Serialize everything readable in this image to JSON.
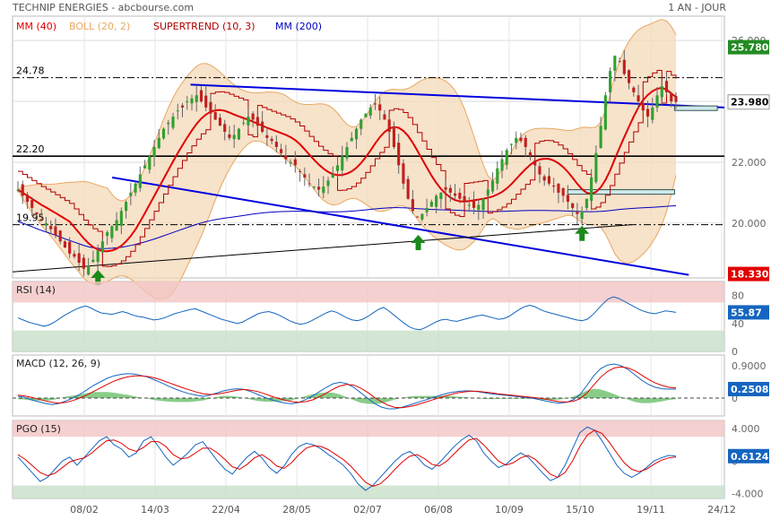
{
  "header": {
    "source": "TECHNIP ENERGIES - abcbourse.com",
    "period": "1 AN - JOUR"
  },
  "colors": {
    "mm40": "#e00000",
    "boll": "#e8a860",
    "boll_fill": "#f4d8b8",
    "supertrend": "#b00000",
    "mm200": "#0000c0",
    "trendline": "#0000dd",
    "candle_up": "#30a030",
    "candle_down": "#c02020",
    "price_badge_green": "#228b22",
    "price_badge_red": "#e00000",
    "indicator_badge": "#1565c0",
    "zone_red": "#f2c4c4",
    "zone_green": "#c8e0c8"
  },
  "chart_data": [
    {
      "type": "candlestick",
      "legend": [
        {
          "label": "MM (40)",
          "color": "#e00000"
        },
        {
          "label": "BOLL (20, 2)",
          "color": "#e8a860"
        },
        {
          "label": "SUPERTREND (10, 3)",
          "color": "#b00000"
        },
        {
          "label": "MM (200)",
          "color": "#0000c0"
        }
      ],
      "ylim": [
        18.2,
        26.8
      ],
      "y_ticks": [
        20.0,
        22.0,
        24.0,
        26.0
      ],
      "x_ticks": [
        "08/02",
        "14/03",
        "22/04",
        "28/05",
        "02/07",
        "06/08",
        "10/09",
        "15/10",
        "19/11",
        "24/12"
      ],
      "levels": [
        {
          "value": 24.78,
          "label": "24.78",
          "style": "dashdot"
        },
        {
          "value": 22.2,
          "label": "22.20",
          "style": "solid"
        },
        {
          "value": 19.95,
          "label": "19.95",
          "style": "dashdot"
        }
      ],
      "price_badges": [
        {
          "value": 25.78,
          "label": "25.780",
          "kind": "green"
        },
        {
          "value": 23.98,
          "label": "23.980",
          "kind": "plain"
        },
        {
          "value": 18.33,
          "label": "18.330",
          "kind": "red"
        }
      ],
      "last_close": 23.98,
      "support_box": {
        "x_from": 0.78,
        "x_to": 0.93,
        "y_low": 20.95,
        "y_high": 21.1
      },
      "resistance_box": {
        "x_from": 0.93,
        "x_to": 0.99,
        "y_low": 23.7,
        "y_high": 23.85
      },
      "trendlines": [
        {
          "x1": 0.25,
          "y1": 24.55,
          "x2": 1.0,
          "y2": 23.8,
          "color": "blue"
        },
        {
          "x1": 0.14,
          "y1": 21.5,
          "x2": 0.95,
          "y2": 18.3,
          "color": "blue"
        },
        {
          "x1": 0.0,
          "y1": 18.4,
          "x2": 0.87,
          "y2": 19.95,
          "color": "black"
        }
      ],
      "arrows": [
        {
          "x": 0.12,
          "y": 18.2
        },
        {
          "x": 0.57,
          "y": 19.35
        },
        {
          "x": 0.8,
          "y": 19.65
        }
      ],
      "close": [
        21.1,
        20.9,
        20.7,
        20.5,
        20.3,
        20.1,
        20.0,
        19.8,
        19.6,
        19.4,
        19.2,
        19.0,
        18.9,
        18.7,
        18.5,
        18.6,
        18.8,
        19.1,
        19.4,
        19.7,
        19.9,
        20.1,
        20.4,
        20.7,
        21.0,
        21.3,
        21.6,
        21.9,
        22.2,
        22.5,
        22.8,
        23.1,
        23.3,
        23.5,
        23.7,
        23.8,
        24.0,
        24.1,
        24.2,
        24.0,
        23.8,
        23.6,
        23.4,
        23.2,
        23.0,
        22.8,
        22.9,
        23.1,
        23.3,
        23.5,
        23.4,
        23.2,
        23.0,
        22.8,
        22.7,
        22.5,
        22.3,
        22.1,
        22.0,
        21.9,
        21.7,
        21.5,
        21.3,
        21.2,
        21.1,
        21.2,
        21.4,
        21.6,
        21.9,
        22.2,
        22.5,
        22.8,
        23.1,
        23.4,
        23.6,
        23.8,
        23.9,
        23.7,
        23.4,
        23.0,
        22.5,
        21.9,
        21.3,
        20.8,
        20.4,
        20.2,
        20.3,
        20.5,
        20.7,
        20.9,
        21.0,
        21.1,
        21.0,
        20.9,
        20.8,
        20.7,
        20.6,
        20.5,
        20.6,
        20.8,
        21.1,
        21.4,
        21.8,
        22.1,
        22.4,
        22.6,
        22.8,
        22.7,
        22.5,
        22.2,
        21.9,
        21.6,
        21.4,
        21.3,
        21.2,
        21.0,
        20.9,
        20.7,
        20.5,
        20.3,
        20.4,
        20.8,
        21.5,
        22.3,
        23.2,
        24.2,
        25.0,
        25.5,
        25.3,
        24.9,
        24.6,
        24.3,
        24.0,
        23.7,
        23.5,
        23.8,
        24.2,
        24.5,
        24.3,
        24.0,
        23.98
      ]
    },
    {
      "type": "line",
      "title": "RSI (14)",
      "ylim": [
        0,
        100
      ],
      "y_ticks": [
        0,
        40.0,
        80.0
      ],
      "zones": {
        "overbought": 70,
        "oversold": 30
      },
      "last_value": 55.87,
      "last_label": "55.87",
      "values": [
        48,
        45,
        42,
        40,
        38,
        36,
        38,
        42,
        47,
        52,
        56,
        60,
        63,
        65,
        62,
        58,
        55,
        54,
        53,
        55,
        57,
        55,
        52,
        50,
        49,
        47,
        45,
        46,
        48,
        51,
        54,
        56,
        58,
        60,
        61,
        58,
        55,
        52,
        49,
        46,
        44,
        42,
        40,
        42,
        46,
        50,
        54,
        56,
        57,
        55,
        52,
        48,
        44,
        41,
        39,
        40,
        43,
        47,
        51,
        55,
        58,
        56,
        52,
        48,
        45,
        44,
        46,
        50,
        55,
        60,
        63,
        58,
        52,
        46,
        40,
        35,
        32,
        31,
        34,
        38,
        42,
        45,
        46,
        44,
        43,
        45,
        47,
        49,
        51,
        52,
        50,
        48,
        46,
        47,
        50,
        55,
        60,
        64,
        66,
        64,
        60,
        57,
        55,
        53,
        51,
        49,
        47,
        45,
        44,
        46,
        52,
        60,
        68,
        75,
        78,
        76,
        72,
        68,
        64,
        60,
        57,
        55,
        54,
        56,
        58,
        57,
        55.87
      ]
    },
    {
      "type": "line",
      "title": "MACD (12, 26, 9)",
      "ylim": [
        -0.5,
        1.2
      ],
      "y_ticks": [
        0,
        0.9
      ],
      "y_tick_labels": [
        "0",
        "0.9000"
      ],
      "last_value": 0.2508,
      "last_label": "0.2508",
      "series": [
        {
          "name": "MACD",
          "color": "#1565c0",
          "values": [
            0.05,
            0.02,
            -0.05,
            -0.1,
            -0.15,
            -0.18,
            -0.15,
            -0.08,
            0.0,
            0.1,
            0.22,
            0.35,
            0.45,
            0.55,
            0.62,
            0.66,
            0.68,
            0.67,
            0.63,
            0.58,
            0.5,
            0.42,
            0.33,
            0.25,
            0.18,
            0.12,
            0.08,
            0.05,
            0.08,
            0.14,
            0.2,
            0.24,
            0.26,
            0.24,
            0.18,
            0.1,
            0.02,
            -0.05,
            -0.1,
            -0.14,
            -0.16,
            -0.12,
            -0.04,
            0.06,
            0.18,
            0.3,
            0.4,
            0.44,
            0.4,
            0.3,
            0.15,
            0.0,
            -0.15,
            -0.25,
            -0.3,
            -0.3,
            -0.26,
            -0.2,
            -0.14,
            -0.08,
            -0.02,
            0.04,
            0.1,
            0.15,
            0.18,
            0.2,
            0.2,
            0.18,
            0.15,
            0.12,
            0.1,
            0.08,
            0.06,
            0.04,
            0.02,
            0.0,
            -0.04,
            -0.08,
            -0.12,
            -0.14,
            -0.12,
            -0.05,
            0.1,
            0.35,
            0.62,
            0.82,
            0.92,
            0.95,
            0.9,
            0.8,
            0.65,
            0.5,
            0.38,
            0.3,
            0.26,
            0.25,
            0.2508
          ]
        },
        {
          "name": "Signal",
          "color": "#e00000",
          "values": [
            0.08,
            0.06,
            0.02,
            -0.03,
            -0.08,
            -0.12,
            -0.14,
            -0.12,
            -0.07,
            0.0,
            0.08,
            0.18,
            0.28,
            0.38,
            0.47,
            0.54,
            0.59,
            0.62,
            0.62,
            0.6,
            0.56,
            0.5,
            0.43,
            0.36,
            0.29,
            0.23,
            0.17,
            0.12,
            0.1,
            0.11,
            0.14,
            0.18,
            0.22,
            0.24,
            0.22,
            0.18,
            0.12,
            0.05,
            -0.01,
            -0.06,
            -0.1,
            -0.12,
            -0.1,
            -0.05,
            0.04,
            0.14,
            0.25,
            0.34,
            0.38,
            0.36,
            0.28,
            0.16,
            0.02,
            -0.1,
            -0.2,
            -0.26,
            -0.27,
            -0.24,
            -0.2,
            -0.14,
            -0.08,
            -0.02,
            0.04,
            0.09,
            0.14,
            0.17,
            0.19,
            0.19,
            0.17,
            0.15,
            0.12,
            0.1,
            0.08,
            0.06,
            0.04,
            0.02,
            0.0,
            -0.03,
            -0.07,
            -0.1,
            -0.11,
            -0.09,
            -0.02,
            0.14,
            0.36,
            0.58,
            0.74,
            0.84,
            0.87,
            0.84,
            0.76,
            0.64,
            0.52,
            0.42,
            0.35,
            0.3,
            0.28
          ]
        }
      ]
    },
    {
      "type": "line",
      "title": "PGO (15)",
      "ylim": [
        -4.6,
        5.0
      ],
      "y_ticks": [
        -4.0,
        0,
        4.0
      ],
      "y_tick_labels": [
        "-4.000",
        "0",
        "4.000"
      ],
      "zones": {
        "overbought": 3,
        "oversold": -3
      },
      "last_value": 0.6124,
      "last_label": "0.6124",
      "series": [
        {
          "name": "PGO",
          "color": "#1565c0",
          "values": [
            0.5,
            -0.5,
            -1.5,
            -2.5,
            -2.0,
            -1.0,
            0.0,
            0.5,
            -0.5,
            0.5,
            1.5,
            2.5,
            3.0,
            2.0,
            1.5,
            0.5,
            1.0,
            2.5,
            3.0,
            1.8,
            0.5,
            -0.5,
            0.2,
            1.0,
            2.0,
            2.4,
            1.2,
            0.0,
            -1.0,
            -1.6,
            -0.5,
            0.5,
            1.2,
            0.4,
            -0.8,
            -1.5,
            -0.6,
            0.8,
            1.8,
            2.2,
            2.0,
            1.5,
            0.8,
            0.2,
            -0.5,
            -1.5,
            -2.8,
            -3.6,
            -3.0,
            -2.0,
            -1.0,
            0.0,
            0.8,
            1.2,
            0.5,
            -0.5,
            -1.0,
            -0.2,
            0.8,
            1.8,
            2.6,
            3.2,
            2.5,
            1.0,
            0.0,
            -0.8,
            -0.4,
            0.4,
            1.0,
            0.5,
            -0.5,
            -1.5,
            -2.4,
            -2.0,
            -0.5,
            1.5,
            3.5,
            4.2,
            3.8,
            2.5,
            1.0,
            -0.5,
            -1.5,
            -2.0,
            -1.5,
            -0.8,
            0.0,
            0.4,
            0.7,
            0.6124
          ]
        },
        {
          "name": "Signal",
          "color": "#e00000",
          "values": [
            0.8,
            0.2,
            -0.6,
            -1.4,
            -1.8,
            -1.5,
            -0.8,
            -0.1,
            0.2,
            0.4,
            1.0,
            1.8,
            2.5,
            2.6,
            2.2,
            1.5,
            1.2,
            1.7,
            2.4,
            2.4,
            1.8,
            0.8,
            0.3,
            0.4,
            1.0,
            1.6,
            1.6,
            1.0,
            0.2,
            -0.7,
            -1.0,
            -0.4,
            0.4,
            0.8,
            0.2,
            -0.6,
            -0.9,
            -0.2,
            0.8,
            1.6,
            1.9,
            1.8,
            1.4,
            0.8,
            0.2,
            -0.6,
            -1.6,
            -2.6,
            -3.1,
            -2.8,
            -2.0,
            -1.0,
            -0.1,
            0.6,
            0.8,
            0.3,
            -0.4,
            -0.6,
            0.0,
            0.9,
            1.8,
            2.6,
            2.8,
            2.0,
            1.0,
            0.0,
            -0.5,
            -0.2,
            0.4,
            0.7,
            0.2,
            -0.7,
            -1.6,
            -2.0,
            -1.4,
            0.0,
            1.8,
            3.2,
            3.8,
            3.4,
            2.3,
            1.0,
            -0.2,
            -1.0,
            -1.3,
            -1.0,
            -0.4,
            0.1,
            0.4,
            0.5
          ]
        }
      ]
    }
  ]
}
